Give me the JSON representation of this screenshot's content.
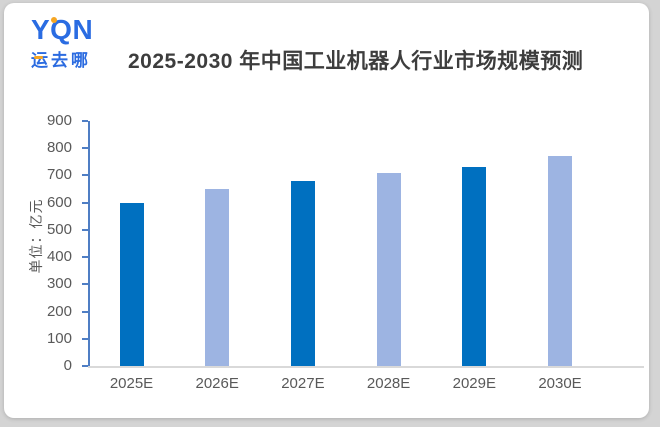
{
  "logo": {
    "text": "YQN",
    "subtext": "运去哪",
    "brand_color": "#2a6ce2",
    "accent_color": "#f6a623"
  },
  "chart_data": {
    "type": "bar",
    "title": "2025-2030 年中国工业机器人行业市场规模预测",
    "categories": [
      "2025E",
      "2026E",
      "2027E",
      "2028E",
      "2029E",
      "2030E"
    ],
    "values": [
      600,
      650,
      680,
      710,
      730,
      770
    ],
    "bar_colors": [
      "#0070c0",
      "#9db4e2",
      "#0070c0",
      "#9db4e2",
      "#0070c0",
      "#9db4e2"
    ],
    "xlabel": "",
    "ylabel": "单位：亿元",
    "ylim": [
      0,
      900
    ],
    "yticks": [
      0,
      100,
      200,
      300,
      400,
      500,
      600,
      700,
      800,
      900
    ],
    "grid": false,
    "legend_position": "none",
    "axis_color": "#4f7ec4",
    "baseline_color": "#d9d9d9",
    "tick_label_color": "#595959"
  }
}
